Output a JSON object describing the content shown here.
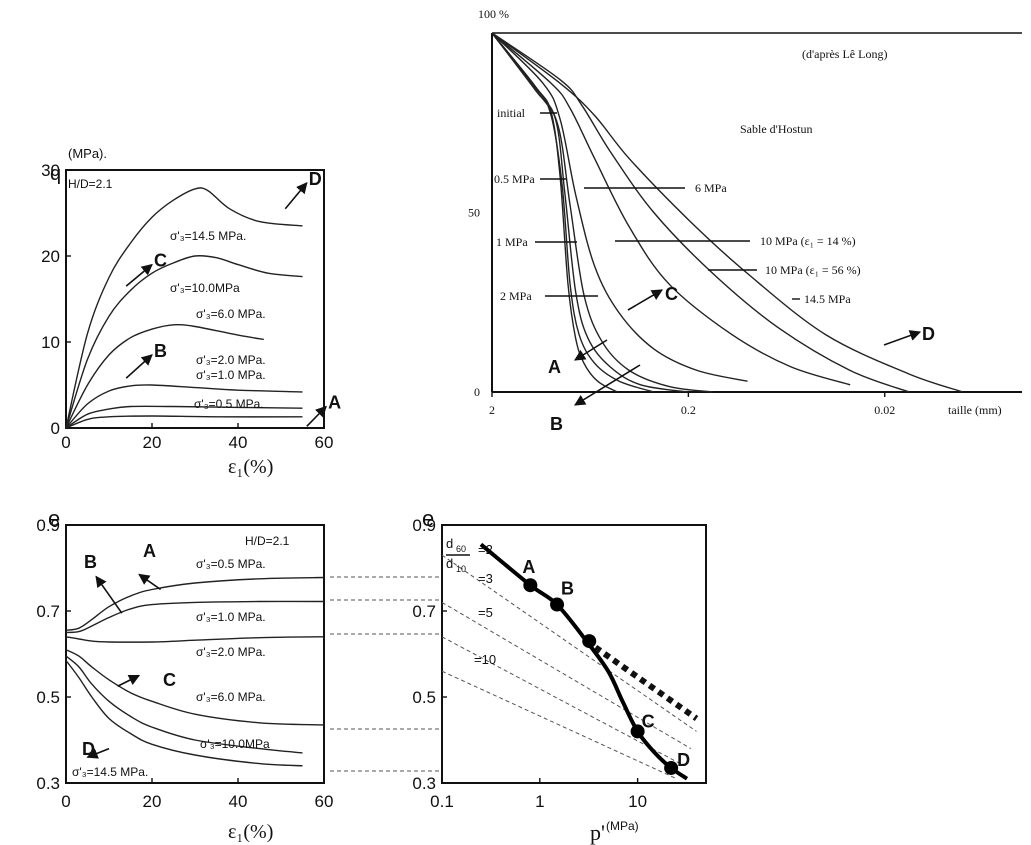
{
  "chart_data": [
    {
      "id": "q_eps",
      "type": "line",
      "ylabel_symbol": "q",
      "ylabel_unit": "(MPa).",
      "xlabel": "ε₁(%)",
      "xlim": [
        0,
        60
      ],
      "ylim": [
        0,
        30
      ],
      "xticks": [
        "0",
        "20",
        "40",
        "60"
      ],
      "yticks": [
        "0",
        "10",
        "20",
        "30"
      ],
      "annotation": "H/D=2.1",
      "series": [
        {
          "name": "σ'₃=14.5 MPa.",
          "x": [
            0,
            5,
            10,
            15,
            20,
            25,
            30,
            33,
            38,
            45,
            55
          ],
          "y": [
            0,
            11,
            17.5,
            21.5,
            24.5,
            26.5,
            27.8,
            27.6,
            25.5,
            24,
            23.5
          ]
        },
        {
          "name": "σ'₃=10.0MPa",
          "x": [
            0,
            5,
            10,
            15,
            20,
            25,
            30,
            35,
            40,
            47,
            55
          ],
          "y": [
            0,
            8,
            13,
            16,
            18,
            19.2,
            20,
            19.8,
            19,
            18,
            17.6
          ]
        },
        {
          "name": "σ'₃=6.0 MPa.",
          "x": [
            0,
            5,
            10,
            15,
            20,
            25,
            30,
            40,
            46
          ],
          "y": [
            0,
            5,
            8.5,
            10.5,
            11.5,
            12,
            11.8,
            10.8,
            10.3
          ]
        },
        {
          "name": "σ'₃=2.0 MPa.",
          "x": [
            0,
            5,
            10,
            15,
            20,
            30,
            40,
            55
          ],
          "y": [
            0,
            2.8,
            4.3,
            4.9,
            5,
            4.7,
            4.4,
            4.2
          ]
        },
        {
          "name": "σ'₃=1.0 MPa.",
          "x": [
            0,
            5,
            10,
            15,
            25,
            40,
            55
          ],
          "y": [
            0,
            1.6,
            2.2,
            2.5,
            2.5,
            2.4,
            2.3
          ]
        },
        {
          "name": "σ'₃=0.5 MPa.",
          "x": [
            0,
            5,
            10,
            20,
            35,
            55
          ],
          "y": [
            0,
            1,
            1.3,
            1.4,
            1.3,
            1.3
          ]
        }
      ],
      "markers": [
        {
          "label": "D",
          "arrow_from": [
            51,
            25.5
          ],
          "arrow_to": [
            56,
            28.5
          ]
        },
        {
          "label": "C",
          "arrow_from": [
            14,
            16.5
          ],
          "arrow_to": [
            20,
            19
          ]
        },
        {
          "label": "B",
          "arrow_from": [
            14,
            5.8
          ],
          "arrow_to": [
            20,
            8.5
          ]
        },
        {
          "label": "A",
          "arrow_from": [
            56,
            0.2
          ],
          "arrow_to": [
            60.5,
            2.5
          ]
        }
      ]
    },
    {
      "id": "grading",
      "type": "line",
      "title": "Sable d'Hostun",
      "subtitle": "(d'après Lê Long)",
      "xlabel": "taille (mm)",
      "ytick_top": "100 %",
      "yticks": [
        "50",
        "0"
      ],
      "xticks": [
        "2",
        "0.2",
        "0.02"
      ],
      "xscale": "log",
      "series": [
        {
          "name": "initial",
          "x": [
            2,
            1.2,
            1.0,
            0.9,
            0.82,
            0.75,
            0.68,
            0.58,
            0.46
          ],
          "y": [
            100,
            85,
            78,
            60,
            30,
            15,
            8,
            3,
            0
          ]
        },
        {
          "name": "0.5 MPa",
          "x": [
            2,
            1.2,
            1.0,
            0.88,
            0.8,
            0.72,
            0.6,
            0.45,
            0.3
          ],
          "y": [
            100,
            85,
            77,
            58,
            30,
            16,
            8,
            3,
            0
          ]
        },
        {
          "name": "1 MPa",
          "x": [
            2,
            1.2,
            0.95,
            0.85,
            0.75,
            0.65,
            0.5,
            0.35,
            0.2
          ],
          "y": [
            100,
            84,
            76,
            55,
            28,
            15,
            7,
            2,
            0
          ]
        },
        {
          "name": "2 MPa",
          "x": [
            2,
            1.15,
            0.92,
            0.8,
            0.68,
            0.55,
            0.4,
            0.25,
            0.15
          ],
          "y": [
            100,
            83,
            74,
            52,
            27,
            14,
            6,
            1.5,
            0
          ]
        },
        {
          "name": "6 MPa",
          "x": [
            2,
            1.1,
            0.9,
            0.75,
            0.6,
            0.45,
            0.3,
            0.18,
            0.1
          ],
          "y": [
            100,
            86,
            76,
            55,
            35,
            22,
            12,
            6,
            3
          ]
        },
        {
          "name": "10 MPa (ε₁ = 14 %)",
          "x": [
            2,
            1.0,
            0.8,
            0.6,
            0.4,
            0.25,
            0.12,
            0.06,
            0.03
          ],
          "y": [
            100,
            86,
            79,
            65,
            46,
            30,
            16,
            7,
            2
          ]
        },
        {
          "name": "10 MPa (ε₁ = 56 %)",
          "x": [
            2,
            0.9,
            0.7,
            0.5,
            0.3,
            0.15,
            0.07,
            0.03,
            0.015
          ],
          "y": [
            100,
            87,
            80,
            67,
            50,
            33,
            18,
            6,
            0
          ]
        },
        {
          "name": "14.5 MPa",
          "x": [
            2,
            0.9,
            0.6,
            0.4,
            0.2,
            0.1,
            0.04,
            0.015,
            0.008
          ],
          "y": [
            100,
            86,
            77,
            65,
            48,
            33,
            16,
            5,
            0
          ]
        }
      ],
      "markers": [
        "A",
        "B",
        "C",
        "D"
      ]
    },
    {
      "id": "e_eps",
      "type": "line",
      "ylabel": "e",
      "xlabel": "ε₁(%)",
      "xlim": [
        0,
        60
      ],
      "ylim": [
        0.3,
        0.9
      ],
      "xticks": [
        "0",
        "20",
        "40",
        "60"
      ],
      "yticks": [
        "0.3",
        "0.5",
        "0.7",
        "0.9"
      ],
      "annotation": "H/D=2.1",
      "series": [
        {
          "name": "σ'₃=0.5 MPa.",
          "x": [
            0,
            3,
            6,
            10,
            15,
            20,
            30,
            45,
            60
          ],
          "y": [
            0.655,
            0.66,
            0.68,
            0.71,
            0.735,
            0.75,
            0.765,
            0.775,
            0.778
          ]
        },
        {
          "name": "σ'₃=1.0 MPa.",
          "x": [
            0,
            3,
            6,
            10,
            15,
            20,
            30,
            45,
            60
          ],
          "y": [
            0.65,
            0.652,
            0.665,
            0.685,
            0.705,
            0.715,
            0.72,
            0.722,
            0.722
          ]
        },
        {
          "name": "σ'₃=2.0 MPa.",
          "x": [
            0,
            3,
            6,
            10,
            20,
            30,
            45,
            60
          ],
          "y": [
            0.64,
            0.635,
            0.63,
            0.628,
            0.628,
            0.632,
            0.638,
            0.64
          ]
        },
        {
          "name": "σ'₃=6.0 MPa.",
          "x": [
            0,
            3,
            6,
            10,
            15,
            20,
            30,
            45,
            60
          ],
          "y": [
            0.61,
            0.595,
            0.57,
            0.54,
            0.51,
            0.49,
            0.46,
            0.44,
            0.435
          ]
        },
        {
          "name": "σ'₃=10.0MPa",
          "x": [
            0,
            3,
            6,
            10,
            15,
            20,
            30,
            45,
            55
          ],
          "y": [
            0.595,
            0.57,
            0.53,
            0.49,
            0.455,
            0.43,
            0.4,
            0.38,
            0.37
          ]
        },
        {
          "name": "σ'₃=14.5 MPa.",
          "x": [
            0,
            3,
            6,
            10,
            15,
            20,
            30,
            45,
            55
          ],
          "y": [
            0.585,
            0.545,
            0.5,
            0.45,
            0.415,
            0.39,
            0.365,
            0.345,
            0.34
          ]
        }
      ],
      "markers": [
        {
          "label": "A",
          "arrow_from": [
            22,
            0.75
          ],
          "arrow_to": [
            17,
            0.785
          ]
        },
        {
          "label": "B",
          "arrow_from": [
            13,
            0.695
          ],
          "arrow_to": [
            7,
            0.78
          ]
        },
        {
          "label": "C",
          "arrow_from": [
            12,
            0.525
          ],
          "arrow_to": [
            17,
            0.55
          ]
        },
        {
          "label": "D",
          "arrow_from": [
            10,
            0.38
          ],
          "arrow_to": [
            5,
            0.36
          ]
        }
      ]
    },
    {
      "id": "e_p",
      "type": "line",
      "ylabel": "e",
      "xlabel": "p'",
      "xlabel_unit": "(MPa)",
      "xscale": "log",
      "xlim": [
        0.1,
        50
      ],
      "ylim": [
        0.3,
        0.9
      ],
      "xticks": [
        "0.1",
        "1",
        "10"
      ],
      "yticks": [
        "0.3",
        "0.5",
        "0.7",
        "0.9"
      ],
      "d_labels": [
        "d",
        "60",
        "d",
        "10",
        "=2",
        "=3",
        "=5",
        "=10"
      ],
      "critical_state": {
        "x": [
          0.25,
          0.8,
          1.5,
          3,
          5,
          7,
          10,
          15,
          22,
          32
        ],
        "y": [
          0.855,
          0.76,
          0.715,
          0.63,
          0.56,
          0.49,
          0.42,
          0.37,
          0.335,
          0.31
        ]
      },
      "thick_dotted": {
        "x": [
          3,
          40
        ],
        "y": [
          0.63,
          0.45
        ]
      },
      "dashed_lines": [
        {
          "x": [
            0.1,
            40
          ],
          "y": [
            0.83,
            0.42
          ]
        },
        {
          "x": [
            0.1,
            35
          ],
          "y": [
            0.72,
            0.38
          ]
        },
        {
          "x": [
            0.1,
            30
          ],
          "y": [
            0.64,
            0.34
          ]
        },
        {
          "x": [
            0.1,
            25
          ],
          "y": [
            0.56,
            0.31
          ]
        }
      ],
      "points": [
        {
          "label": "A",
          "p": 0.8,
          "e": 0.76
        },
        {
          "label": "B",
          "p": 1.5,
          "e": 0.715
        },
        {
          "label": "",
          "p": 3.2,
          "e": 0.63
        },
        {
          "label": "C",
          "p": 10,
          "e": 0.42
        },
        {
          "label": "D",
          "p": 22,
          "e": 0.335
        }
      ]
    }
  ]
}
